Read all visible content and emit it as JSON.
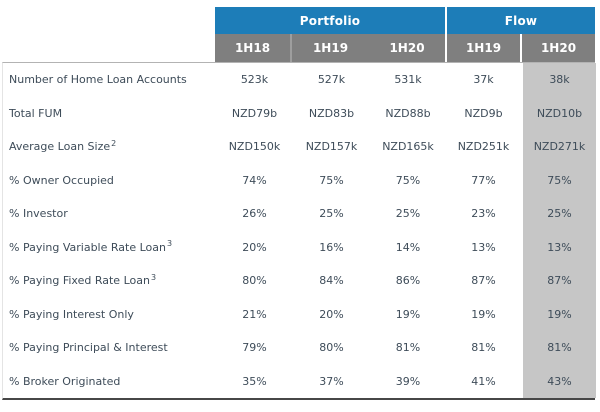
{
  "colors": {
    "group_header_bg": "#1d7db8",
    "column_header_bg": "#7f7f7f",
    "highlight_column_bg": "#c6c6c6",
    "header_text": "#ffffff",
    "body_text": "#3e4c59",
    "bottom_border": "#474747",
    "divider": "#9e9e9e"
  },
  "chart_data": {
    "type": "table",
    "column_groups": [
      {
        "label": "Portfolio",
        "span": 3
      },
      {
        "label": "Flow",
        "span": 2
      }
    ],
    "columns": [
      "1H18",
      "1H19",
      "1H20",
      "1H19",
      "1H20"
    ],
    "highlighted_column_index": 4,
    "rows": [
      {
        "label": "Number of Home Loan Accounts",
        "superscript": "",
        "values": [
          "523k",
          "527k",
          "531k",
          "37k",
          "38k"
        ]
      },
      {
        "label": "Total FUM",
        "superscript": "",
        "values": [
          "NZD79b",
          "NZD83b",
          "NZD88b",
          "NZD9b",
          "NZD10b"
        ]
      },
      {
        "label": "Average Loan Size",
        "superscript": "2",
        "values": [
          "NZD150k",
          "NZD157k",
          "NZD165k",
          "NZD251k",
          "NZD271k"
        ]
      },
      {
        "label": "% Owner Occupied",
        "superscript": "",
        "values": [
          "74%",
          "75%",
          "75%",
          "77%",
          "75%"
        ]
      },
      {
        "label": "% Investor",
        "superscript": "",
        "values": [
          "26%",
          "25%",
          "25%",
          "23%",
          "25%"
        ]
      },
      {
        "label": "% Paying Variable Rate Loan",
        "superscript": "3",
        "values": [
          "20%",
          "16%",
          "14%",
          "13%",
          "13%"
        ]
      },
      {
        "label": "% Paying Fixed Rate Loan",
        "superscript": "3",
        "values": [
          "80%",
          "84%",
          "86%",
          "87%",
          "87%"
        ]
      },
      {
        "label": "% Paying Interest Only",
        "superscript": "",
        "values": [
          "21%",
          "20%",
          "19%",
          "19%",
          "19%"
        ]
      },
      {
        "label": "% Paying Principal & Interest",
        "superscript": "",
        "values": [
          "79%",
          "80%",
          "81%",
          "81%",
          "81%"
        ]
      },
      {
        "label": "% Broker Originated",
        "superscript": "",
        "values": [
          "35%",
          "37%",
          "39%",
          "41%",
          "43%"
        ]
      }
    ]
  }
}
